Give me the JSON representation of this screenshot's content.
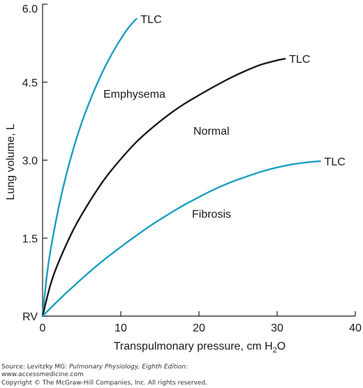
{
  "chart_data": {
    "type": "line",
    "xlabel": "Transpulmonary pressure, cm H",
    "xlabel_sub": "2",
    "xlabel_end": "O",
    "ylabel": "Lung volume, L",
    "xlim": [
      0,
      40
    ],
    "ylim": [
      0,
      6.0
    ],
    "x_ticks": [
      0,
      10,
      20,
      30,
      40
    ],
    "x_tick_labels": [
      "0",
      "10",
      "20",
      "30",
      "40"
    ],
    "y_ticks": [
      0,
      1.5,
      3.0,
      4.5,
      6.0
    ],
    "y_tick_labels": [
      "RV",
      "1.5",
      "3.0",
      "4.5",
      "6.0"
    ],
    "grid": false,
    "colors": {
      "teal": "#1a9fc0",
      "black": "#1a1a1a"
    },
    "series": [
      {
        "name": "Emphysema",
        "color": "#1a9fc0",
        "points": [
          [
            0,
            0
          ],
          [
            0.5,
            0.72
          ],
          [
            1,
            1.25
          ],
          [
            2,
            2.05
          ],
          [
            3,
            2.7
          ],
          [
            4,
            3.25
          ],
          [
            5,
            3.72
          ],
          [
            6,
            4.12
          ],
          [
            7,
            4.48
          ],
          [
            8,
            4.8
          ],
          [
            9,
            5.08
          ],
          [
            10,
            5.33
          ],
          [
            11,
            5.55
          ],
          [
            12,
            5.72
          ]
        ],
        "end_label": "TLC"
      },
      {
        "name": "Normal",
        "color": "#1a1a1a",
        "points": [
          [
            0,
            0
          ],
          [
            1,
            0.6
          ],
          [
            2,
            1.02
          ],
          [
            4,
            1.68
          ],
          [
            6,
            2.2
          ],
          [
            8,
            2.65
          ],
          [
            10,
            3.02
          ],
          [
            12,
            3.35
          ],
          [
            14,
            3.62
          ],
          [
            16,
            3.86
          ],
          [
            18,
            4.07
          ],
          [
            20,
            4.25
          ],
          [
            22,
            4.42
          ],
          [
            24,
            4.58
          ],
          [
            26,
            4.72
          ],
          [
            28,
            4.84
          ],
          [
            30,
            4.92
          ],
          [
            31,
            4.95
          ]
        ],
        "end_label": "TLC"
      },
      {
        "name": "Fibrosis",
        "color": "#1a9fc0",
        "points": [
          [
            0,
            0
          ],
          [
            2,
            0.3
          ],
          [
            4,
            0.58
          ],
          [
            6,
            0.85
          ],
          [
            8,
            1.1
          ],
          [
            10,
            1.33
          ],
          [
            12,
            1.55
          ],
          [
            14,
            1.76
          ],
          [
            16,
            1.95
          ],
          [
            18,
            2.13
          ],
          [
            20,
            2.29
          ],
          [
            22,
            2.44
          ],
          [
            24,
            2.57
          ],
          [
            26,
            2.68
          ],
          [
            28,
            2.78
          ],
          [
            30,
            2.86
          ],
          [
            32,
            2.92
          ],
          [
            34,
            2.96
          ],
          [
            35.5,
            2.98
          ]
        ],
        "end_label": "TLC"
      }
    ]
  },
  "source": {
    "line1_prefix": "Source: Levitzky MG: ",
    "line1_title": "Pulmonary Physiology, Eighth Edition",
    "line1_suffix": ":",
    "line2": "www.accessmedicine.com",
    "line3": "Copyright © The McGraw-Hill Companies, Inc. All rights reserved."
  }
}
